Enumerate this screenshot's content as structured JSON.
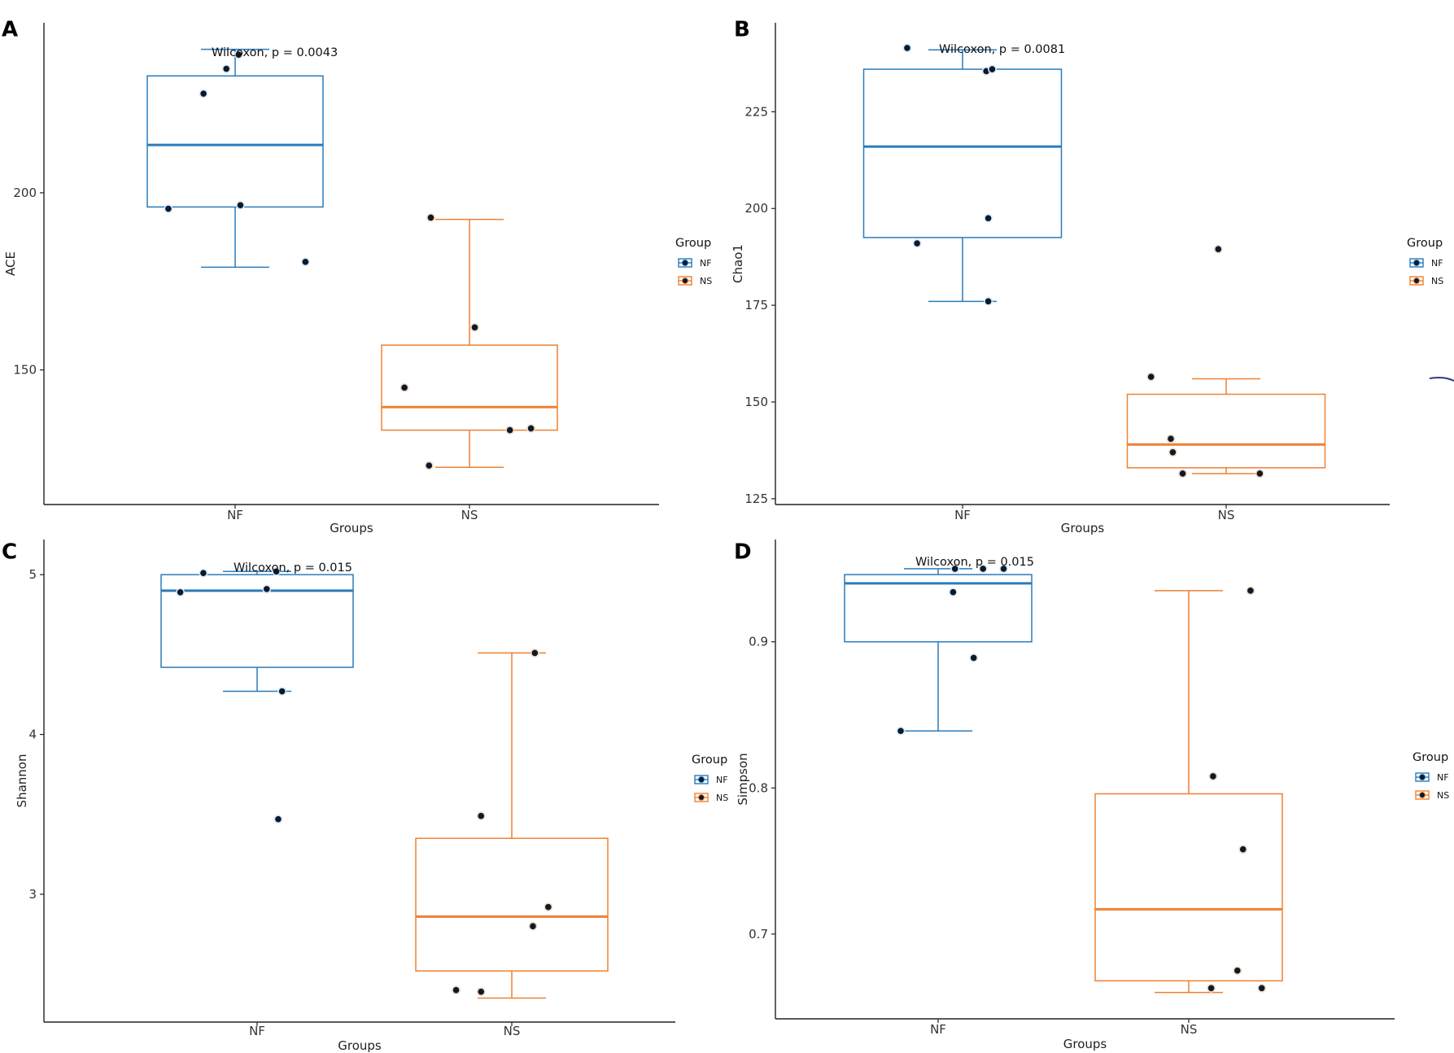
{
  "colors": {
    "NF": "#2b7bba",
    "NS": "#ee8133",
    "point_fill": "#0a1a2e",
    "point_ring_NF": "#dbe9f6",
    "point_ring_NS": "#f7d9bf",
    "axis": "#222222",
    "text": "#222222"
  },
  "chart_data": [
    {
      "panel": "A",
      "type": "box",
      "ylabel": "ACE",
      "xlabel": "Groups",
      "categories": [
        "NF",
        "NS"
      ],
      "ylim": [
        112,
        248
      ],
      "yticks": [
        {
          "v": 150,
          "label": "150"
        },
        {
          "v": 200,
          "label": "200"
        }
      ],
      "annotation": "Wilcoxon, p = 0.0043",
      "legend_title": "Group",
      "legend_labels": [
        "NF",
        "NS"
      ],
      "boxes": [
        {
          "group": "NF",
          "whisker_low": 179,
          "q1": 196,
          "median": 213.5,
          "q3": 233,
          "whisker_high": 240.5
        },
        {
          "group": "NS",
          "whisker_low": 122.5,
          "q1": 133,
          "median": 139.5,
          "q3": 157,
          "whisker_high": 192.5
        }
      ],
      "points": [
        {
          "group": "NF",
          "dx": -0.38,
          "y": 195.5
        },
        {
          "group": "NF",
          "dx": 0.03,
          "y": 196.5
        },
        {
          "group": "NF",
          "dx": 0.4,
          "y": 180.5
        },
        {
          "group": "NF",
          "dx": -0.18,
          "y": 228
        },
        {
          "group": "NF",
          "dx": -0.05,
          "y": 235
        },
        {
          "group": "NF",
          "dx": 0.02,
          "y": 239
        },
        {
          "group": "NS",
          "dx": -0.22,
          "y": 193
        },
        {
          "group": "NS",
          "dx": 0.03,
          "y": 162
        },
        {
          "group": "NS",
          "dx": -0.37,
          "y": 145
        },
        {
          "group": "NS",
          "dx": 0.23,
          "y": 133
        },
        {
          "group": "NS",
          "dx": 0.35,
          "y": 133.5
        },
        {
          "group": "NS",
          "dx": -0.23,
          "y": 123
        }
      ]
    },
    {
      "panel": "B",
      "type": "box",
      "ylabel": "Chao1",
      "xlabel": "Groups",
      "categories": [
        "NF",
        "NS"
      ],
      "ylim": [
        123.5,
        248
      ],
      "yticks": [
        {
          "v": 125,
          "label": "125"
        },
        {
          "v": 150,
          "label": "150"
        },
        {
          "v": 175,
          "label": "175"
        },
        {
          "v": 200,
          "label": "200"
        },
        {
          "v": 225,
          "label": "225"
        }
      ],
      "annotation": "Wilcoxon, p = 0.0081",
      "legend_title": "Group",
      "legend_labels": [
        "NF",
        "NS"
      ],
      "boxes": [
        {
          "group": "NF",
          "whisker_low": 176,
          "q1": 192.5,
          "median": 216,
          "q3": 236,
          "whisker_high": 241
        },
        {
          "group": "NS",
          "whisker_low": 131.5,
          "q1": 133,
          "median": 139,
          "q3": 152,
          "whisker_high": 156
        }
      ],
      "points": [
        {
          "group": "NF",
          "dx": -0.28,
          "y": 241.5
        },
        {
          "group": "NF",
          "dx": 0.12,
          "y": 235.5
        },
        {
          "group": "NF",
          "dx": 0.15,
          "y": 236
        },
        {
          "group": "NF",
          "dx": -0.23,
          "y": 191
        },
        {
          "group": "NF",
          "dx": 0.13,
          "y": 197.5
        },
        {
          "group": "NF",
          "dx": 0.13,
          "y": 176
        },
        {
          "group": "NS",
          "dx": -0.04,
          "y": 189.5
        },
        {
          "group": "NS",
          "dx": -0.38,
          "y": 156.5
        },
        {
          "group": "NS",
          "dx": -0.28,
          "y": 140.5
        },
        {
          "group": "NS",
          "dx": -0.27,
          "y": 137
        },
        {
          "group": "NS",
          "dx": -0.22,
          "y": 131.5
        },
        {
          "group": "NS",
          "dx": 0.17,
          "y": 131.5
        }
      ]
    },
    {
      "panel": "C",
      "type": "box",
      "ylabel": "Shannon",
      "xlabel": "Groups",
      "categories": [
        "NF",
        "NS"
      ],
      "ylim": [
        2.2,
        5.22
      ],
      "yticks": [
        {
          "v": 3,
          "label": "3"
        },
        {
          "v": 4,
          "label": "4"
        },
        {
          "v": 5,
          "label": "5"
        }
      ],
      "annotation": "Wilcoxon, p = 0.015",
      "legend_title": "Group",
      "legend_labels": [
        "NF",
        "NS"
      ],
      "boxes": [
        {
          "group": "NF",
          "whisker_low": 4.27,
          "q1": 4.42,
          "median": 4.9,
          "q3": 5.0,
          "whisker_high": 5.02
        },
        {
          "group": "NS",
          "whisker_low": 2.35,
          "q1": 2.52,
          "median": 2.86,
          "q3": 3.35,
          "whisker_high": 4.51
        }
      ],
      "points": [
        {
          "group": "NF",
          "dx": -0.28,
          "y": 5.01
        },
        {
          "group": "NF",
          "dx": 0.1,
          "y": 5.02
        },
        {
          "group": "NF",
          "dx": -0.4,
          "y": 4.89
        },
        {
          "group": "NF",
          "dx": 0.05,
          "y": 4.91
        },
        {
          "group": "NF",
          "dx": 0.13,
          "y": 4.27
        },
        {
          "group": "NF",
          "dx": 0.11,
          "y": 3.47
        },
        {
          "group": "NS",
          "dx": 0.12,
          "y": 4.51
        },
        {
          "group": "NS",
          "dx": -0.16,
          "y": 3.49
        },
        {
          "group": "NS",
          "dx": 0.19,
          "y": 2.92
        },
        {
          "group": "NS",
          "dx": 0.11,
          "y": 2.8
        },
        {
          "group": "NS",
          "dx": -0.29,
          "y": 2.4
        },
        {
          "group": "NS",
          "dx": -0.16,
          "y": 2.39
        }
      ]
    },
    {
      "panel": "D",
      "type": "box",
      "ylabel": "Simpson",
      "xlabel": "Groups",
      "categories": [
        "NF",
        "NS"
      ],
      "ylim": [
        0.642,
        0.97
      ],
      "yticks": [
        {
          "v": 0.7,
          "label": "0.7"
        },
        {
          "v": 0.8,
          "label": "0.8"
        },
        {
          "v": 0.9,
          "label": "0.9"
        }
      ],
      "annotation": "Wilcoxon, p = 0.015",
      "legend_title": "Group",
      "legend_labels": [
        "NF",
        "NS"
      ],
      "boxes": [
        {
          "group": "NF",
          "whisker_low": 0.839,
          "q1": 0.9,
          "median": 0.94,
          "q3": 0.946,
          "whisker_high": 0.95
        },
        {
          "group": "NS",
          "whisker_low": 0.66,
          "q1": 0.668,
          "median": 0.717,
          "q3": 0.796,
          "whisker_high": 0.935
        }
      ],
      "points": [
        {
          "group": "NF",
          "dx": 0.09,
          "y": 0.95
        },
        {
          "group": "NF",
          "dx": 0.24,
          "y": 0.95
        },
        {
          "group": "NF",
          "dx": 0.35,
          "y": 0.95
        },
        {
          "group": "NF",
          "dx": 0.08,
          "y": 0.934
        },
        {
          "group": "NF",
          "dx": 0.19,
          "y": 0.889
        },
        {
          "group": "NF",
          "dx": -0.2,
          "y": 0.839
        },
        {
          "group": "NS",
          "dx": 0.33,
          "y": 0.935
        },
        {
          "group": "NS",
          "dx": 0.13,
          "y": 0.808
        },
        {
          "group": "NS",
          "dx": 0.29,
          "y": 0.758
        },
        {
          "group": "NS",
          "dx": 0.26,
          "y": 0.675
        },
        {
          "group": "NS",
          "dx": 0.12,
          "y": 0.663
        },
        {
          "group": "NS",
          "dx": 0.39,
          "y": 0.663
        }
      ]
    }
  ]
}
